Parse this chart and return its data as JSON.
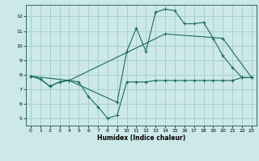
{
  "xlabel": "Humidex (Indice chaleur)",
  "xlim": [
    -0.5,
    23.5
  ],
  "ylim": [
    4.5,
    12.8
  ],
  "yticks": [
    5,
    6,
    7,
    8,
    9,
    10,
    11,
    12
  ],
  "xticks": [
    0,
    1,
    2,
    3,
    4,
    5,
    6,
    7,
    8,
    9,
    10,
    11,
    12,
    13,
    14,
    15,
    16,
    17,
    18,
    19,
    20,
    21,
    22,
    23
  ],
  "bg_color": "#cce8e8",
  "line_color": "#1a6b5a",
  "grid_color": "#aacece",
  "line1_x": [
    0,
    1,
    2,
    3,
    4,
    5,
    6,
    7,
    8,
    9,
    10,
    11,
    12,
    13,
    14,
    15,
    16,
    17,
    18,
    19,
    20,
    21,
    22,
    23
  ],
  "line1_y": [
    7.9,
    7.7,
    7.2,
    7.5,
    7.6,
    7.5,
    6.5,
    5.8,
    5.0,
    5.2,
    7.5,
    7.5,
    7.5,
    7.6,
    7.6,
    7.6,
    7.6,
    7.6,
    7.6,
    7.6,
    7.6,
    7.6,
    7.8,
    7.8
  ],
  "line2_x": [
    0,
    1,
    2,
    3,
    4,
    9,
    10,
    11,
    12,
    13,
    14,
    15,
    16,
    17,
    18,
    19,
    20,
    21,
    22,
    23
  ],
  "line2_y": [
    7.9,
    7.7,
    7.2,
    7.5,
    7.6,
    6.1,
    9.6,
    11.2,
    9.6,
    12.3,
    12.5,
    12.4,
    11.5,
    11.5,
    11.6,
    10.5,
    9.3,
    8.5,
    7.8,
    7.8
  ],
  "line3_x": [
    0,
    4,
    14,
    20,
    23
  ],
  "line3_y": [
    7.9,
    7.6,
    10.8,
    10.5,
    7.8
  ]
}
